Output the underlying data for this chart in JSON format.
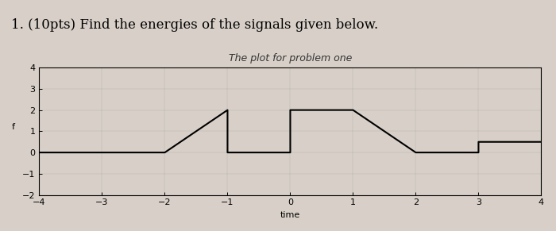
{
  "title": "The plot for problem one",
  "xlabel": "time",
  "ylabel": "f",
  "header_text": "1. (10pts) Find the energies of the signals given below.",
  "xlim": [
    -4,
    4
  ],
  "ylim": [
    -2,
    4
  ],
  "xticks": [
    -4,
    -3,
    -2,
    -1,
    0,
    1,
    2,
    3,
    4
  ],
  "yticks": [
    -2,
    -1,
    0,
    1,
    2,
    3,
    4
  ],
  "signal_x": [
    -4,
    -2,
    -1,
    -1,
    -1,
    0,
    0,
    1,
    2,
    3,
    3,
    4
  ],
  "signal_y": [
    0,
    0,
    2,
    2,
    0,
    0,
    2,
    2,
    0,
    0,
    0.5,
    0.5
  ],
  "line_color": "#000000",
  "line_width": 1.5,
  "background_color": "#d8d0c8",
  "plot_bg_color": "#d8d0c8",
  "title_fontsize": 9,
  "label_fontsize": 8,
  "tick_fontsize": 8,
  "header_fontsize": 12
}
